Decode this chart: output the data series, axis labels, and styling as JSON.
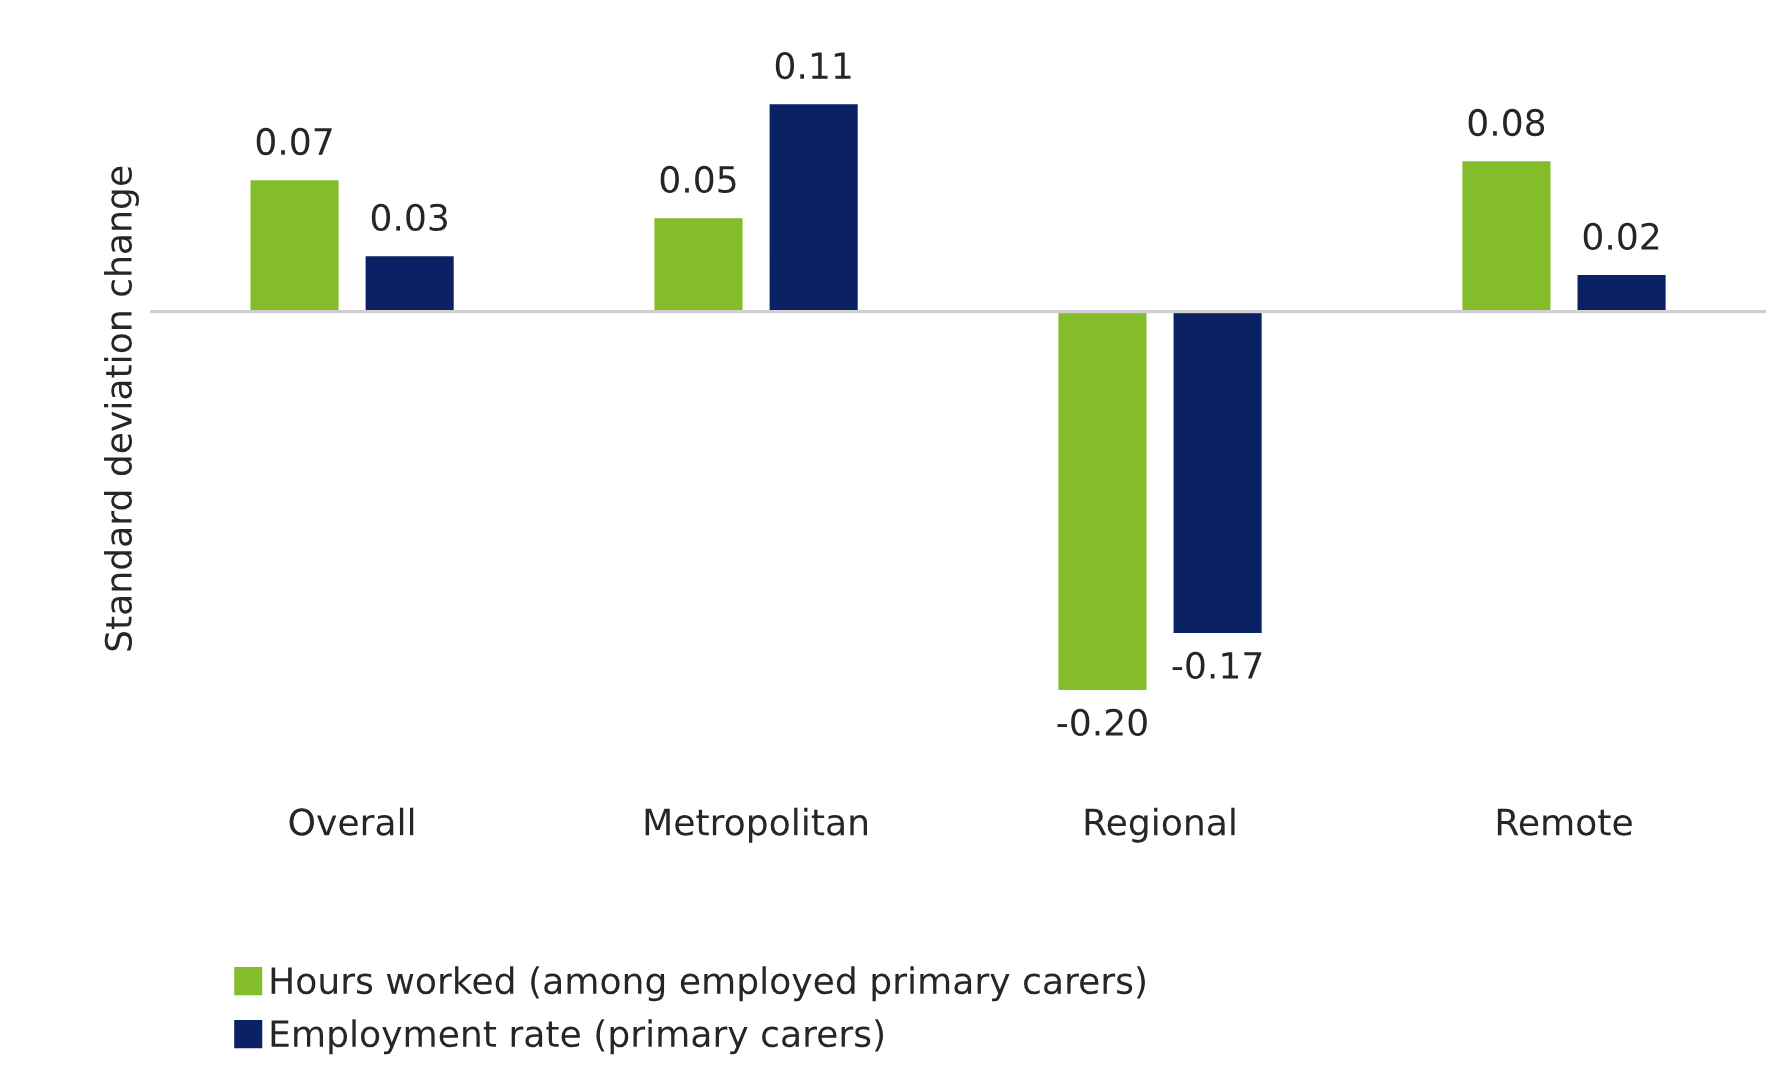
{
  "chart_data": {
    "type": "bar",
    "ylabel": "Standard deviation change",
    "categories": [
      "Overall",
      "Metropolitan",
      "Regional",
      "Remote"
    ],
    "series": [
      {
        "name": "Hours worked (among employed primary carers)",
        "color": "#84bd2b",
        "values": [
          0.07,
          0.05,
          -0.2,
          0.08
        ],
        "value_labels": [
          "0.07",
          "0.05",
          "-0.20",
          "0.08"
        ]
      },
      {
        "name": "Employment rate (primary carers)",
        "color": "#0a2164",
        "values": [
          0.03,
          0.11,
          -0.17,
          0.02
        ],
        "value_labels": [
          "0.03",
          "0.11",
          "-0.17",
          "0.02"
        ]
      }
    ],
    "grid": false,
    "legend": "bottom",
    "tick_labels": "x"
  }
}
